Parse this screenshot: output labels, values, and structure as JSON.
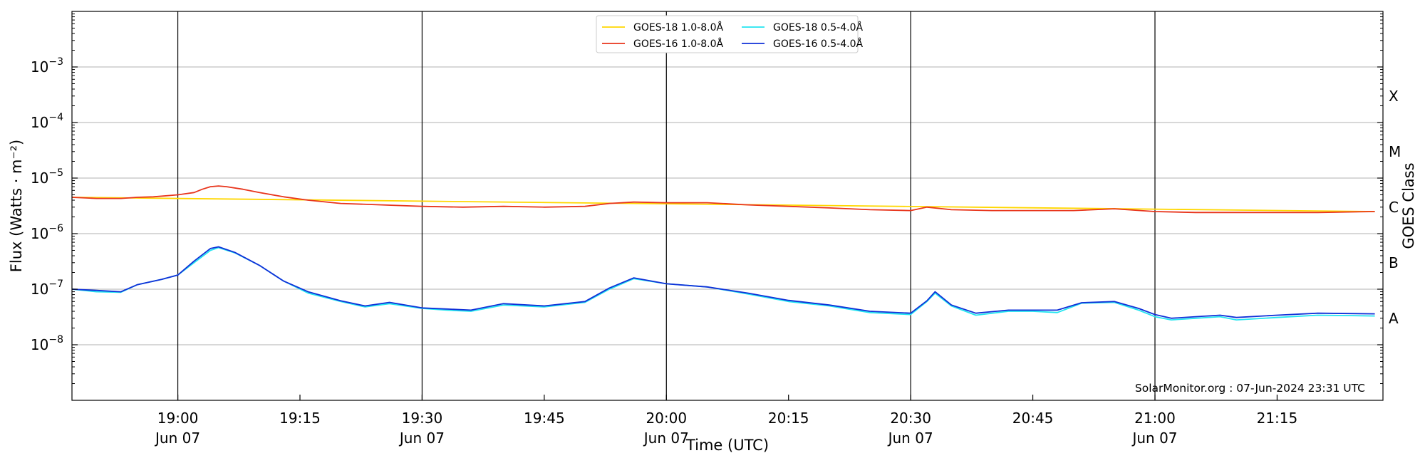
{
  "chart_data": {
    "type": "line",
    "title": "",
    "xlabel": "Time (UTC)",
    "ylabel": "Flux (Watts · m⁻²)",
    "right_label": "GOES Class",
    "y_scale": "log",
    "ylim": [
      1e-09,
      0.01
    ],
    "xlim": [
      "2024-06-07T18:47",
      "2024-06-07T21:28"
    ],
    "grid": "horizontal",
    "legend_placement": "top-center",
    "credit": "SolarMonitor.org : 07-Jun-2024 23:31 UTC",
    "y_ticks": [
      {
        "value": 1e-08,
        "base": "10",
        "exp": "−8"
      },
      {
        "value": 1e-07,
        "base": "10",
        "exp": "−7"
      },
      {
        "value": 1e-06,
        "base": "10",
        "exp": "−6"
      },
      {
        "value": 1e-05,
        "base": "10",
        "exp": "−5"
      },
      {
        "value": 0.0001,
        "base": "10",
        "exp": "−4"
      },
      {
        "value": 0.001,
        "base": "10",
        "exp": "−3"
      }
    ],
    "x_ticks": [
      {
        "time": "2024-06-07T19:00",
        "label": "19:00",
        "date": "Jun 07"
      },
      {
        "time": "2024-06-07T19:15",
        "label": "19:15",
        "date": ""
      },
      {
        "time": "2024-06-07T19:30",
        "label": "19:30",
        "date": "Jun 07"
      },
      {
        "time": "2024-06-07T19:45",
        "label": "19:45",
        "date": ""
      },
      {
        "time": "2024-06-07T20:00",
        "label": "20:00",
        "date": "Jun 07"
      },
      {
        "time": "2024-06-07T20:15",
        "label": "20:15",
        "date": ""
      },
      {
        "time": "2024-06-07T20:30",
        "label": "20:30",
        "date": "Jun 07"
      },
      {
        "time": "2024-06-07T20:45",
        "label": "20:45",
        "date": ""
      },
      {
        "time": "2024-06-07T21:00",
        "label": "21:00",
        "date": "Jun 07"
      },
      {
        "time": "2024-06-07T21:15",
        "label": "21:15",
        "date": ""
      }
    ],
    "vertical_markers": [
      "2024-06-07T19:00",
      "2024-06-07T19:30",
      "2024-06-07T20:00",
      "2024-06-07T20:30",
      "2024-06-07T21:00"
    ],
    "goes_classes": [
      {
        "label": "A",
        "value": 3e-08
      },
      {
        "label": "B",
        "value": 3e-07
      },
      {
        "label": "C",
        "value": 3e-06
      },
      {
        "label": "M",
        "value": 3e-05
      },
      {
        "label": "X",
        "value": 0.0003
      }
    ],
    "series": [
      {
        "name": "GOES-18 1.0-8.0Å",
        "color": "#ffd700",
        "x": [
          "2024-06-07T18:47",
          "2024-06-07T21:27"
        ],
        "values": [
          4.5e-06,
          2.5e-06
        ]
      },
      {
        "name": "GOES-16 1.0-8.0Å",
        "color": "#e8351c",
        "x": [
          "2024-06-07T18:47",
          "2024-06-07T18:50",
          "2024-06-07T18:53",
          "2024-06-07T18:55",
          "2024-06-07T18:57",
          "2024-06-07T19:00",
          "2024-06-07T19:02",
          "2024-06-07T19:03",
          "2024-06-07T19:04",
          "2024-06-07T19:05",
          "2024-06-07T19:06",
          "2024-06-07T19:08",
          "2024-06-07T19:10",
          "2024-06-07T19:13",
          "2024-06-07T19:16",
          "2024-06-07T19:20",
          "2024-06-07T19:25",
          "2024-06-07T19:30",
          "2024-06-07T19:35",
          "2024-06-07T19:40",
          "2024-06-07T19:45",
          "2024-06-07T19:50",
          "2024-06-07T19:53",
          "2024-06-07T19:56",
          "2024-06-07T20:00",
          "2024-06-07T20:05",
          "2024-06-07T20:10",
          "2024-06-07T20:15",
          "2024-06-07T20:20",
          "2024-06-07T20:25",
          "2024-06-07T20:30",
          "2024-06-07T20:32",
          "2024-06-07T20:35",
          "2024-06-07T20:40",
          "2024-06-07T20:45",
          "2024-06-07T20:50",
          "2024-06-07T20:55",
          "2024-06-07T21:00",
          "2024-06-07T21:05",
          "2024-06-07T21:10",
          "2024-06-07T21:15",
          "2024-06-07T21:20",
          "2024-06-07T21:27"
        ],
        "values": [
          4.5e-06,
          4.3e-06,
          4.3e-06,
          4.5e-06,
          4.6e-06,
          5e-06,
          5.5e-06,
          6.3e-06,
          7e-06,
          7.2e-06,
          7e-06,
          6.3e-06,
          5.5e-06,
          4.6e-06,
          4e-06,
          3.5e-06,
          3.3e-06,
          3.1e-06,
          3e-06,
          3.1e-06,
          3e-06,
          3.1e-06,
          3.5e-06,
          3.7e-06,
          3.6e-06,
          3.6e-06,
          3.3e-06,
          3.1e-06,
          2.9e-06,
          2.7e-06,
          2.6e-06,
          3e-06,
          2.7e-06,
          2.6e-06,
          2.6e-06,
          2.6e-06,
          2.8e-06,
          2.5e-06,
          2.4e-06,
          2.4e-06,
          2.4e-06,
          2.4e-06,
          2.5e-06
        ]
      },
      {
        "name": "GOES-18 0.5-4.0Å",
        "color": "#22e5f0",
        "x": [
          "2024-06-07T18:47",
          "2024-06-07T18:50",
          "2024-06-07T18:53",
          "2024-06-07T18:55",
          "2024-06-07T18:58",
          "2024-06-07T19:00",
          "2024-06-07T19:02",
          "2024-06-07T19:04",
          "2024-06-07T19:05",
          "2024-06-07T19:07",
          "2024-06-07T19:10",
          "2024-06-07T19:13",
          "2024-06-07T19:16",
          "2024-06-07T19:20",
          "2024-06-07T19:23",
          "2024-06-07T19:26",
          "2024-06-07T19:30",
          "2024-06-07T19:33",
          "2024-06-07T19:36",
          "2024-06-07T19:40",
          "2024-06-07T19:45",
          "2024-06-07T19:50",
          "2024-06-07T19:53",
          "2024-06-07T19:56",
          "2024-06-07T20:00",
          "2024-06-07T20:05",
          "2024-06-07T20:10",
          "2024-06-07T20:15",
          "2024-06-07T20:20",
          "2024-06-07T20:25",
          "2024-06-07T20:30",
          "2024-06-07T20:32",
          "2024-06-07T20:33",
          "2024-06-07T20:35",
          "2024-06-07T20:38",
          "2024-06-07T20:42",
          "2024-06-07T20:45",
          "2024-06-07T20:48",
          "2024-06-07T20:51",
          "2024-06-07T20:55",
          "2024-06-07T20:58",
          "2024-06-07T21:00",
          "2024-06-07T21:02",
          "2024-06-07T21:05",
          "2024-06-07T21:08",
          "2024-06-07T21:10",
          "2024-06-07T21:15",
          "2024-06-07T21:20",
          "2024-06-07T21:27"
        ],
        "values": [
          1e-07,
          9e-08,
          8.8e-08,
          1.2e-07,
          1.5e-07,
          1.8e-07,
          3e-07,
          5e-07,
          5.6e-07,
          4.5e-07,
          2.7e-07,
          1.4e-07,
          8.5e-08,
          6e-08,
          4.8e-08,
          5.5e-08,
          4.5e-08,
          4.2e-08,
          4e-08,
          5.2e-08,
          4.8e-08,
          5.8e-08,
          1e-07,
          1.55e-07,
          1.25e-07,
          1.1e-07,
          8.2e-08,
          6e-08,
          5e-08,
          3.8e-08,
          3.5e-08,
          6e-08,
          8.5e-08,
          5e-08,
          3.4e-08,
          4e-08,
          4e-08,
          3.8e-08,
          5.6e-08,
          5.8e-08,
          4.2e-08,
          3.2e-08,
          2.8e-08,
          3e-08,
          3.2e-08,
          2.8e-08,
          3.1e-08,
          3.4e-08,
          3.3e-08
        ]
      },
      {
        "name": "GOES-16 0.5-4.0Å",
        "color": "#1030d8",
        "x": [
          "2024-06-07T18:47",
          "2024-06-07T18:50",
          "2024-06-07T18:53",
          "2024-06-07T18:55",
          "2024-06-07T18:58",
          "2024-06-07T19:00",
          "2024-06-07T19:02",
          "2024-06-07T19:04",
          "2024-06-07T19:05",
          "2024-06-07T19:07",
          "2024-06-07T19:10",
          "2024-06-07T19:13",
          "2024-06-07T19:16",
          "2024-06-07T19:20",
          "2024-06-07T19:23",
          "2024-06-07T19:26",
          "2024-06-07T19:30",
          "2024-06-07T19:33",
          "2024-06-07T19:36",
          "2024-06-07T19:40",
          "2024-06-07T19:45",
          "2024-06-07T19:50",
          "2024-06-07T19:53",
          "2024-06-07T19:56",
          "2024-06-07T20:00",
          "2024-06-07T20:05",
          "2024-06-07T20:10",
          "2024-06-07T20:15",
          "2024-06-07T20:20",
          "2024-06-07T20:25",
          "2024-06-07T20:30",
          "2024-06-07T20:32",
          "2024-06-07T20:33",
          "2024-06-07T20:35",
          "2024-06-07T20:38",
          "2024-06-07T20:42",
          "2024-06-07T20:45",
          "2024-06-07T20:48",
          "2024-06-07T20:51",
          "2024-06-07T20:55",
          "2024-06-07T20:58",
          "2024-06-07T21:00",
          "2024-06-07T21:02",
          "2024-06-07T21:05",
          "2024-06-07T21:08",
          "2024-06-07T21:10",
          "2024-06-07T21:15",
          "2024-06-07T21:20",
          "2024-06-07T21:27"
        ],
        "values": [
          1e-07,
          9.5e-08,
          9e-08,
          1.2e-07,
          1.5e-07,
          1.8e-07,
          3.2e-07,
          5.4e-07,
          5.8e-07,
          4.6e-07,
          2.7e-07,
          1.4e-07,
          9e-08,
          6.2e-08,
          5e-08,
          5.8e-08,
          4.6e-08,
          4.4e-08,
          4.2e-08,
          5.5e-08,
          5e-08,
          6e-08,
          1.05e-07,
          1.6e-07,
          1.25e-07,
          1.1e-07,
          8.5e-08,
          6.3e-08,
          5.2e-08,
          4e-08,
          3.7e-08,
          6.2e-08,
          9e-08,
          5.2e-08,
          3.7e-08,
          4.2e-08,
          4.2e-08,
          4.2e-08,
          5.7e-08,
          6e-08,
          4.5e-08,
          3.5e-08,
          3e-08,
          3.2e-08,
          3.4e-08,
          3.1e-08,
          3.4e-08,
          3.7e-08,
          3.6e-08
        ]
      }
    ]
  }
}
